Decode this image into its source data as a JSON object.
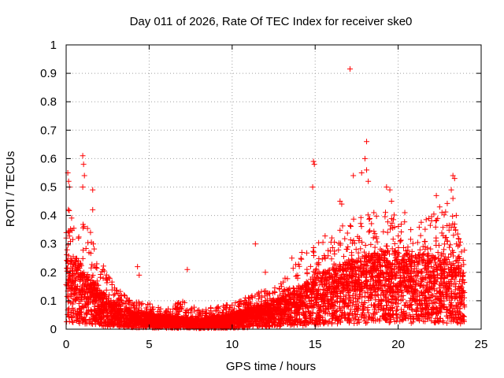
{
  "chart_data": {
    "type": "scatter",
    "title": "Day 011 of 2026, Rate Of TEC Index for receiver ske0",
    "xlabel": "GPS time / hours",
    "ylabel": "ROTI / TECUs",
    "xlim": [
      0,
      25
    ],
    "ylim": [
      0,
      1
    ],
    "grid": true,
    "marker": "+",
    "color": "#ff0000",
    "x_ticks": [
      "0",
      "5",
      "10",
      "15",
      "20",
      "25"
    ],
    "y_ticks": [
      "0",
      "0.1",
      "0.2",
      "0.3",
      "0.4",
      "0.5",
      "0.6",
      "0.7",
      "0.8",
      "0.9",
      "1"
    ],
    "series": [
      {
        "name": "ROTI",
        "profile": {
          "hours": [
            0.0,
            0.5,
            1.0,
            1.5,
            2.0,
            2.5,
            3.0,
            3.5,
            4.0,
            5.0,
            6.0,
            7.0,
            8.0,
            9.0,
            10.0,
            11.0,
            12.0,
            13.0,
            14.0,
            15.0,
            16.0,
            17.0,
            18.0,
            19.0,
            20.0,
            21.0,
            22.0,
            23.0,
            24.0
          ],
          "typical": [
            0.15,
            0.14,
            0.12,
            0.1,
            0.08,
            0.06,
            0.05,
            0.04,
            0.035,
            0.03,
            0.025,
            0.025,
            0.02,
            0.025,
            0.03,
            0.04,
            0.05,
            0.06,
            0.08,
            0.1,
            0.12,
            0.13,
            0.14,
            0.15,
            0.15,
            0.14,
            0.15,
            0.14,
            0.12
          ],
          "upper": [
            0.45,
            0.38,
            0.4,
            0.35,
            0.25,
            0.2,
            0.15,
            0.12,
            0.1,
            0.09,
            0.08,
            0.1,
            0.07,
            0.08,
            0.09,
            0.12,
            0.14,
            0.18,
            0.25,
            0.3,
            0.35,
            0.4,
            0.4,
            0.42,
            0.4,
            0.38,
            0.4,
            0.45,
            0.3
          ]
        },
        "highlights": [
          {
            "x": 0.1,
            "y": 0.55
          },
          {
            "x": 0.15,
            "y": 0.52
          },
          {
            "x": 0.2,
            "y": 0.5
          },
          {
            "x": 1.0,
            "y": 0.61
          },
          {
            "x": 1.05,
            "y": 0.58
          },
          {
            "x": 1.1,
            "y": 0.54
          },
          {
            "x": 1.0,
            "y": 0.5
          },
          {
            "x": 1.6,
            "y": 0.49
          },
          {
            "x": 1.6,
            "y": 0.42
          },
          {
            "x": 4.3,
            "y": 0.22
          },
          {
            "x": 4.4,
            "y": 0.19
          },
          {
            "x": 7.3,
            "y": 0.21
          },
          {
            "x": 11.4,
            "y": 0.3
          },
          {
            "x": 14.9,
            "y": 0.59
          },
          {
            "x": 14.95,
            "y": 0.58
          },
          {
            "x": 14.85,
            "y": 0.5
          },
          {
            "x": 17.1,
            "y": 0.915
          },
          {
            "x": 18.1,
            "y": 0.66
          },
          {
            "x": 18.0,
            "y": 0.6
          },
          {
            "x": 18.1,
            "y": 0.56
          },
          {
            "x": 18.2,
            "y": 0.52
          },
          {
            "x": 17.3,
            "y": 0.54
          },
          {
            "x": 17.8,
            "y": 0.55
          },
          {
            "x": 16.5,
            "y": 0.45
          },
          {
            "x": 16.6,
            "y": 0.44
          },
          {
            "x": 19.3,
            "y": 0.5
          },
          {
            "x": 19.5,
            "y": 0.49
          },
          {
            "x": 19.6,
            "y": 0.45
          },
          {
            "x": 20.4,
            "y": 0.41
          },
          {
            "x": 22.3,
            "y": 0.47
          },
          {
            "x": 22.5,
            "y": 0.43
          },
          {
            "x": 23.3,
            "y": 0.54
          },
          {
            "x": 23.4,
            "y": 0.53
          },
          {
            "x": 23.2,
            "y": 0.49
          },
          {
            "x": 23.3,
            "y": 0.46
          },
          {
            "x": 23.5,
            "y": 0.4
          },
          {
            "x": 12.0,
            "y": 0.2
          },
          {
            "x": 13.6,
            "y": 0.25
          },
          {
            "x": 14.2,
            "y": 0.27
          }
        ]
      }
    ]
  }
}
